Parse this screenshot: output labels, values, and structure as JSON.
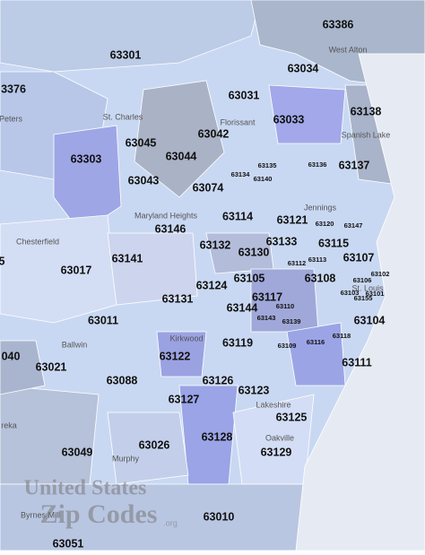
{
  "zip_labels": [
    "63386",
    "63301",
    "3376",
    "63034",
    "63031",
    "63033",
    "63138",
    "63045",
    "63042",
    "63137",
    "63303",
    "63044",
    "63043",
    "63074",
    "63114",
    "63121",
    "63146",
    "63115",
    "63132",
    "63133",
    "63130",
    "63107",
    "63141",
    "63017",
    "5",
    "63108",
    "63105",
    "63124",
    "63131",
    "63117",
    "63011",
    "63144",
    "63104",
    "63119",
    "040",
    "63122",
    "63021",
    "63111",
    "63088",
    "63126",
    "63123",
    "63127",
    "63125",
    "63128",
    "63026",
    "63049",
    "63129",
    "63010",
    "63051"
  ],
  "small_zip_labels": [
    "63135",
    "63136",
    "63134",
    "63140",
    "63120",
    "63147",
    "63112",
    "63113",
    "63106",
    "63102",
    "63101",
    "63103",
    "63155",
    "63110",
    "63143",
    "63139",
    "63118",
    "63116",
    "63109"
  ],
  "places": [
    "West Alton",
    "St. Charles",
    "Florissant",
    "Spanish Lake",
    "Jennings",
    "Maryland Heights",
    "Chesterfield",
    "St. Louis",
    "Ballwin",
    "Kirkwood",
    "Lakeshire",
    "Murphy",
    "Oakville",
    "reka",
    "Peters",
    "Byrnes Mill"
  ],
  "watermark": {
    "line1": "United States",
    "line2": "Zip Codes",
    "suffix": ".org"
  }
}
